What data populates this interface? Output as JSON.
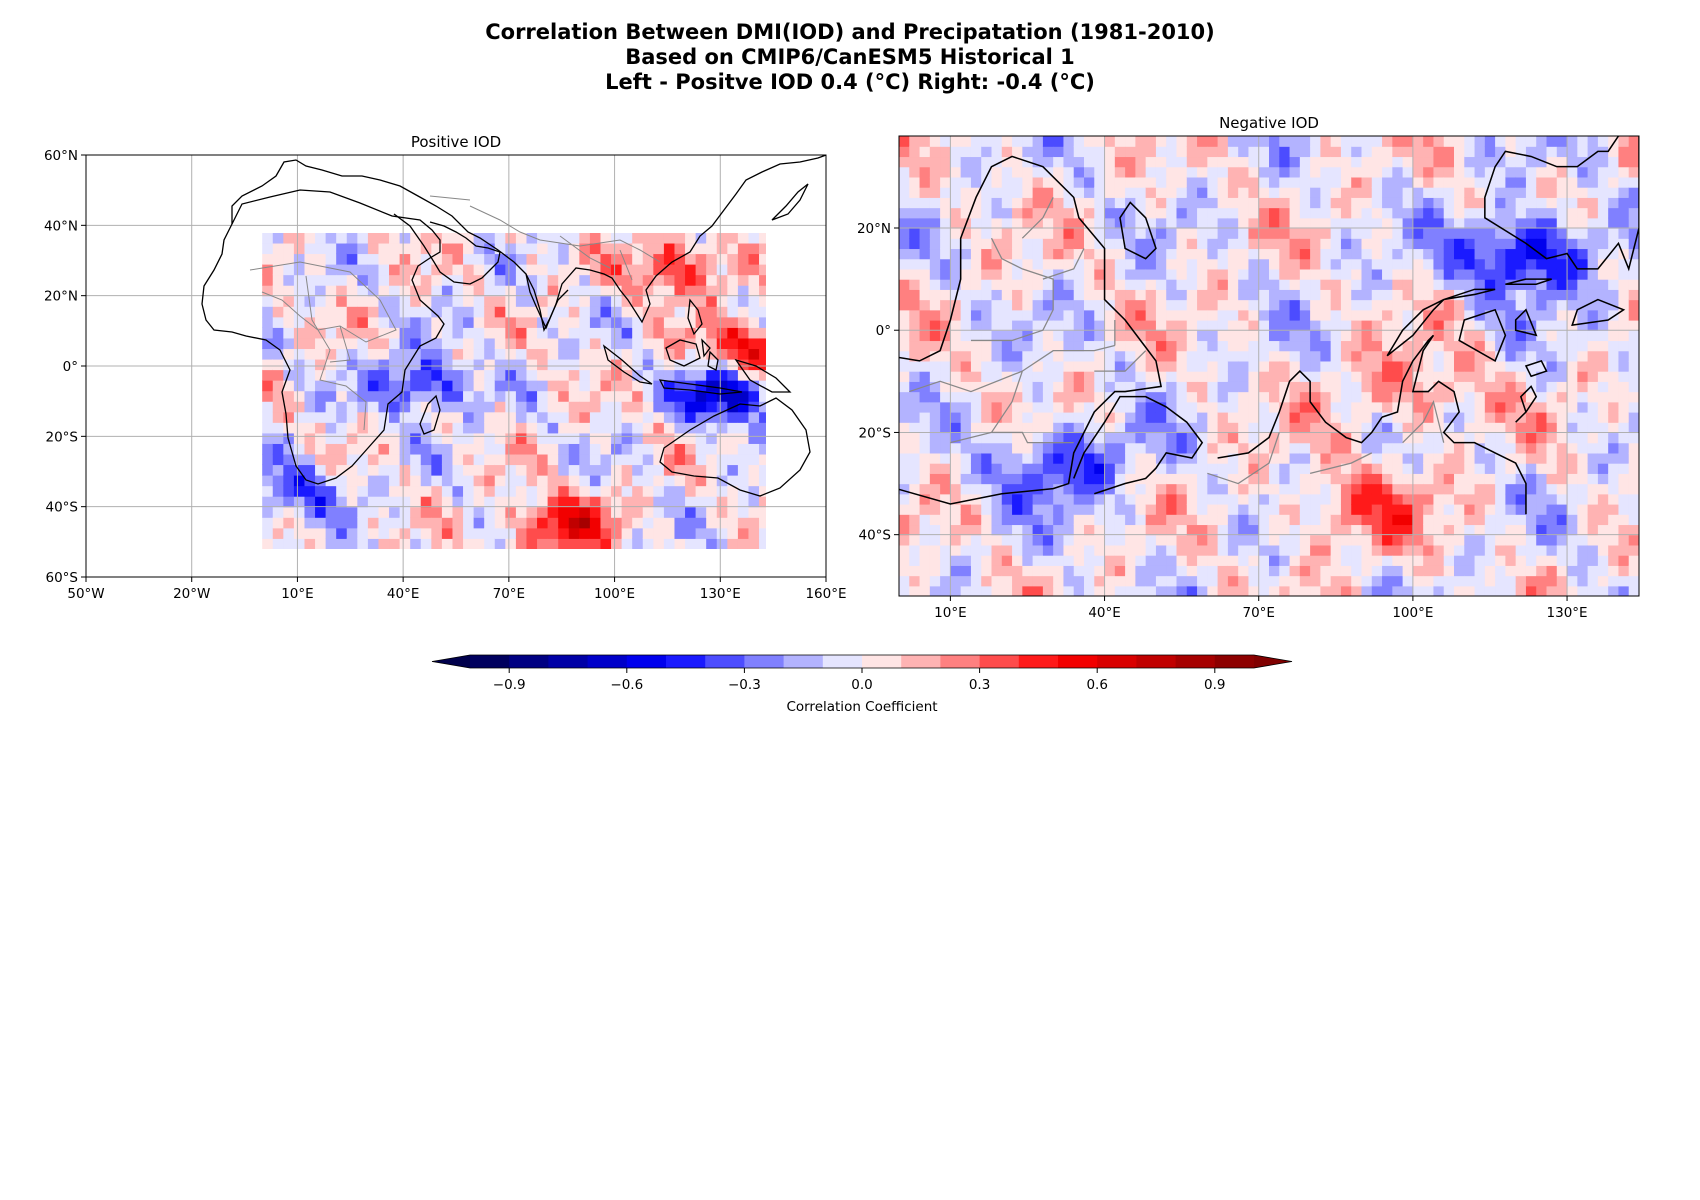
{
  "figure": {
    "title_lines": [
      "Correlation Between DMI(IOD) and Precipatation (1981-2010)",
      "Based on CMIP6/CanESM5 Historical 1",
      "Left - Positve IOD 0.4 (°C) Right: -0.4 (°C)"
    ]
  },
  "chart_data": [
    {
      "type": "heatmap",
      "title": "Positive IOD",
      "xlim": [
        -50,
        160
      ],
      "ylim": [
        -60,
        60
      ],
      "data_extent": {
        "lon": [
          0,
          144
        ],
        "lat": [
          -52,
          38
        ]
      },
      "x_ticks": [
        -50,
        -20,
        10,
        40,
        70,
        100,
        130,
        160
      ],
      "x_tick_labels": [
        "50°W",
        "20°W",
        "10°E",
        "40°E",
        "70°E",
        "100°E",
        "130°E",
        "160°E"
      ],
      "y_ticks": [
        60,
        40,
        20,
        0,
        -20,
        -40,
        -60
      ],
      "y_tick_labels": [
        "60°N",
        "40°N",
        "20°N",
        "0°",
        "20°S",
        "40°S",
        "60°S"
      ],
      "grid": true,
      "notable_regions": [
        {
          "lon": 132,
          "lat": -8,
          "value": -0.7
        },
        {
          "lon": 140,
          "lat": 5,
          "value": 0.6
        },
        {
          "lon": 85,
          "lat": -45,
          "value": 0.6
        },
        {
          "lon": 45,
          "lat": -5,
          "value": -0.5
        },
        {
          "lon": 118,
          "lat": 28,
          "value": 0.5
        },
        {
          "lon": 10,
          "lat": -35,
          "value": -0.4
        }
      ]
    },
    {
      "type": "heatmap",
      "title": "Negative IOD",
      "xlim": [
        0,
        144
      ],
      "ylim": [
        -52,
        38
      ],
      "x_ticks": [
        10,
        40,
        70,
        100,
        130
      ],
      "x_tick_labels": [
        "10°E",
        "40°E",
        "70°E",
        "100°E",
        "130°E"
      ],
      "y_ticks": [
        20,
        0,
        -20,
        -40
      ],
      "y_tick_labels": [
        "20°N",
        "0°",
        "20°S",
        "40°S"
      ],
      "grid": true,
      "notable_regions": [
        {
          "lon": 122,
          "lat": 15,
          "value": -0.6
        },
        {
          "lon": 32,
          "lat": -26,
          "value": -0.4
        },
        {
          "lon": 100,
          "lat": -12,
          "value": 0.25
        },
        {
          "lon": 90,
          "lat": -35,
          "value": 0.3
        }
      ]
    }
  ],
  "colorbar": {
    "label": "Correlation Coefficient",
    "range": [
      -1.0,
      1.0
    ],
    "extend": "both",
    "ticks": [
      -0.9,
      -0.6,
      -0.3,
      0.0,
      0.3,
      0.6,
      0.9
    ],
    "tick_labels": [
      "−0.9",
      "−0.6",
      "−0.3",
      "0.0",
      "0.3",
      "0.6",
      "0.9"
    ],
    "colormap": "seismic"
  }
}
